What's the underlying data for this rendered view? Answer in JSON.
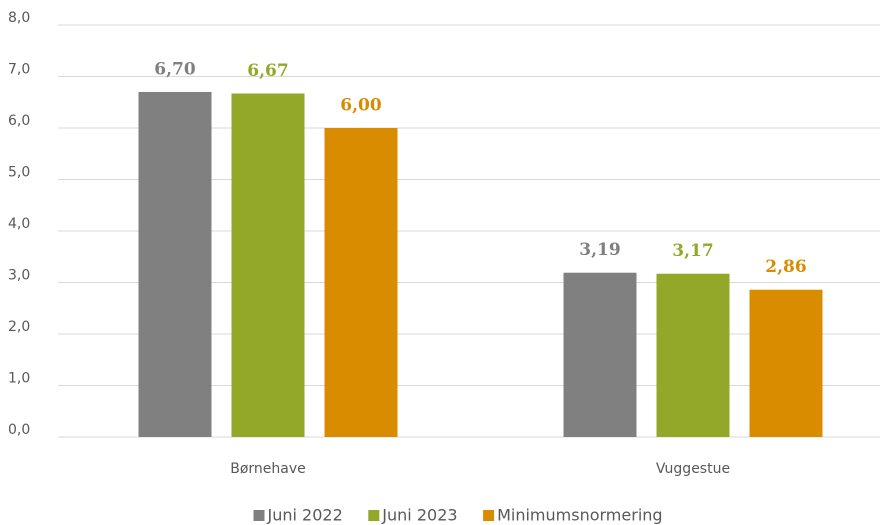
{
  "chart_data": {
    "type": "bar",
    "categories": [
      "Børnehave",
      "Vuggestue"
    ],
    "series": [
      {
        "name": "Juni 2022",
        "color": "#808080",
        "values": [
          6.7,
          3.19
        ],
        "value_labels": [
          "6,70",
          "3,19"
        ]
      },
      {
        "name": "Juni 2023",
        "color": "#93a829",
        "values": [
          6.67,
          3.17
        ],
        "value_labels": [
          "6,67",
          "3,17"
        ]
      },
      {
        "name": "Minimumsnormering",
        "color": "#d98c00",
        "values": [
          6.0,
          2.86
        ],
        "value_labels": [
          "6,00",
          "2,86"
        ]
      }
    ],
    "ylim": [
      0,
      8
    ],
    "yticks": [
      {
        "value": 0,
        "label": "0,0"
      },
      {
        "value": 1,
        "label": "1,0"
      },
      {
        "value": 2,
        "label": "2,0"
      },
      {
        "value": 3,
        "label": "3,0"
      },
      {
        "value": 4,
        "label": "4,0"
      },
      {
        "value": 5,
        "label": "5,0"
      },
      {
        "value": 6,
        "label": "6,0"
      },
      {
        "value": 7,
        "label": "7,0"
      },
      {
        "value": 8,
        "label": "8,0"
      }
    ],
    "grid": true,
    "legend": "bottom"
  }
}
